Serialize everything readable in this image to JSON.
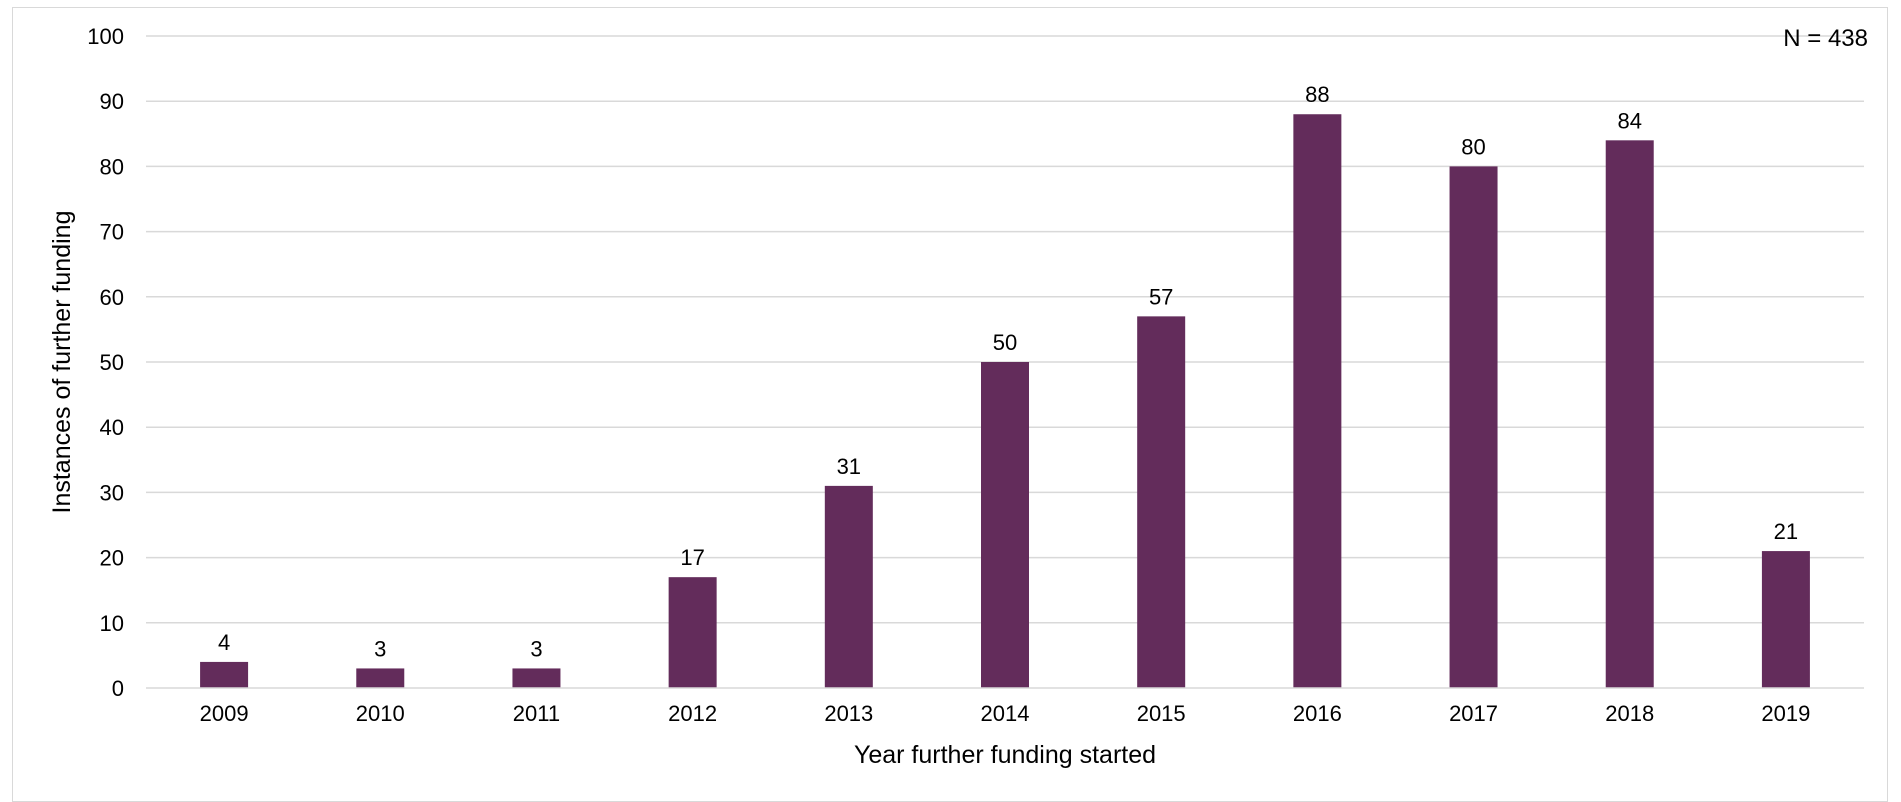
{
  "chart_data": {
    "type": "bar",
    "categories": [
      "2009",
      "2010",
      "2011",
      "2012",
      "2013",
      "2014",
      "2015",
      "2016",
      "2017",
      "2018",
      "2019"
    ],
    "values": [
      4,
      3,
      3,
      17,
      31,
      50,
      57,
      88,
      80,
      84,
      21
    ],
    "data_labels": [
      "4",
      "3",
      "3",
      "17",
      "31",
      "50",
      "57",
      "88",
      "80",
      "84",
      "21"
    ],
    "xlabel": "Year further funding started",
    "ylabel": "Instances of further funding",
    "ylim": [
      0,
      100
    ],
    "yticks": [
      "0",
      "10",
      "20",
      "30",
      "40",
      "50",
      "60",
      "70",
      "80",
      "90",
      "100"
    ],
    "annotation": "N = 438",
    "bar_color": "#632c5b",
    "grid": true,
    "gridline_color": "#d9d9d9"
  }
}
